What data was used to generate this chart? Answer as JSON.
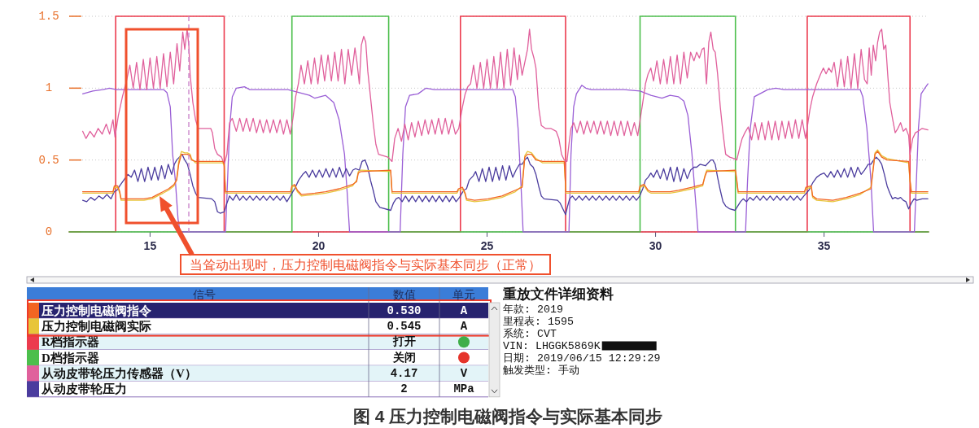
{
  "chart_data": [
    {
      "type": "line",
      "xlim": [
        12.6,
        38.1
      ],
      "xticks": [
        15,
        20,
        25,
        30,
        35
      ],
      "ylim": [
        0,
        1.5
      ],
      "yticks": [
        0,
        0.5,
        1,
        1.5
      ],
      "grid": "y",
      "legend": "bottom",
      "legend_title": "信号",
      "ref_lines": [
        {
          "axis": "x",
          "value": 16.15,
          "color": "#c77dc7",
          "line_style": "dashed"
        }
      ],
      "annotations": [
        "当耸动出现时，压力控制电磁阀指令与实际基本同步（正常）",
        "图 4 压力控制电磁阀指令与实际基本同步"
      ],
      "series": [
        {
          "name": "压力控制电磁阀指令",
          "color": "#f26522",
          "x": [
            13.0,
            13.9,
            13.94,
            14.04,
            14.1,
            14.14,
            14.58,
            14.82,
            15.06,
            15.22,
            15.39,
            15.55,
            15.71,
            15.79,
            15.85,
            15.93,
            16.03,
            16.11,
            16.19,
            16.23,
            16.35,
            17.16,
            17.2,
            17.24,
            19.17,
            19.21,
            19.29,
            19.37,
            19.41,
            19.49,
            19.89,
            20.21,
            20.61,
            21.01,
            21.13,
            21.18,
            21.26,
            22.14,
            22.18,
            24.11,
            24.15,
            24.27,
            24.35,
            24.39,
            24.63,
            25.03,
            25.44,
            25.84,
            26.04,
            26.12,
            26.2,
            26.32,
            26.45,
            26.65,
            27.29,
            27.34,
            29.5,
            29.54,
            29.66,
            29.78,
            29.86,
            30.43,
            30.68,
            31.08,
            31.4,
            31.46,
            31.52,
            32.37,
            32.41,
            32.45,
            34.42,
            34.46,
            34.62,
            34.66,
            34.78,
            35.26,
            35.66,
            36.07,
            36.39,
            36.51,
            36.59,
            36.71,
            36.87,
            37.51,
            37.55,
            37.59,
            38.08
          ],
          "values": [
            0.28,
            0.28,
            0.32,
            0.32,
            0.28,
            0.23,
            0.23,
            0.23,
            0.24,
            0.26,
            0.28,
            0.3,
            0.33,
            0.36,
            0.47,
            0.54,
            0.54,
            0.54,
            0.53,
            0.5,
            0.49,
            0.49,
            0.47,
            0.28,
            0.28,
            0.32,
            0.33,
            0.29,
            0.28,
            0.26,
            0.27,
            0.28,
            0.3,
            0.33,
            0.35,
            0.41,
            0.42,
            0.43,
            0.28,
            0.28,
            0.3,
            0.31,
            0.27,
            0.23,
            0.22,
            0.23,
            0.25,
            0.29,
            0.31,
            0.52,
            0.54,
            0.54,
            0.5,
            0.49,
            0.49,
            0.28,
            0.28,
            0.32,
            0.33,
            0.29,
            0.28,
            0.28,
            0.29,
            0.31,
            0.33,
            0.38,
            0.42,
            0.43,
            0.36,
            0.28,
            0.28,
            0.31,
            0.32,
            0.25,
            0.23,
            0.22,
            0.24,
            0.27,
            0.3,
            0.54,
            0.56,
            0.52,
            0.5,
            0.49,
            0.36,
            0.28,
            0.28
          ]
        },
        {
          "name": "压力控制电磁阀实际",
          "color": "#e8c53a",
          "x": [
            13.0,
            13.9,
            13.94,
            14.04,
            14.1,
            14.14,
            14.58,
            14.82,
            15.06,
            15.22,
            15.39,
            15.55,
            15.71,
            15.79,
            15.85,
            15.93,
            16.03,
            16.11,
            16.19,
            16.23,
            16.35,
            17.16,
            17.2,
            17.24,
            19.17,
            19.21,
            19.29,
            19.37,
            19.41,
            19.49,
            19.89,
            20.21,
            20.61,
            21.01,
            21.13,
            21.18,
            21.26,
            22.14,
            22.18,
            24.11,
            24.15,
            24.27,
            24.35,
            24.39,
            24.63,
            25.03,
            25.44,
            25.84,
            26.04,
            26.12,
            26.2,
            26.32,
            26.45,
            26.65,
            27.29,
            27.34,
            29.5,
            29.54,
            29.66,
            29.78,
            29.86,
            30.43,
            30.68,
            31.08,
            31.4,
            31.46,
            31.52,
            32.37,
            32.41,
            32.45,
            34.42,
            34.46,
            34.62,
            34.66,
            34.78,
            35.26,
            35.66,
            36.07,
            36.39,
            36.51,
            36.59,
            36.71,
            36.87,
            37.51,
            37.55,
            37.59,
            38.08
          ],
          "values": [
            0.27,
            0.27,
            0.31,
            0.31,
            0.27,
            0.22,
            0.22,
            0.22,
            0.23,
            0.25,
            0.27,
            0.29,
            0.32,
            0.37,
            0.49,
            0.56,
            0.55,
            0.55,
            0.54,
            0.51,
            0.48,
            0.48,
            0.46,
            0.27,
            0.27,
            0.31,
            0.32,
            0.28,
            0.27,
            0.25,
            0.26,
            0.27,
            0.29,
            0.32,
            0.36,
            0.42,
            0.43,
            0.42,
            0.27,
            0.27,
            0.29,
            0.3,
            0.26,
            0.22,
            0.21,
            0.22,
            0.24,
            0.28,
            0.32,
            0.53,
            0.56,
            0.55,
            0.51,
            0.48,
            0.48,
            0.27,
            0.27,
            0.31,
            0.32,
            0.28,
            0.27,
            0.27,
            0.28,
            0.3,
            0.32,
            0.39,
            0.43,
            0.42,
            0.35,
            0.27,
            0.27,
            0.3,
            0.31,
            0.24,
            0.22,
            0.21,
            0.23,
            0.26,
            0.31,
            0.55,
            0.57,
            0.53,
            0.51,
            0.48,
            0.35,
            0.27,
            0.27
          ]
        },
        {
          "name": "R档指示器",
          "type": "step",
          "color": "#ec3b4e",
          "x": [
            12.6,
            13.98,
            17.2,
            24.21,
            27.33,
            34.5,
            37.55,
            38.1
          ],
          "values": [
            0,
            1.5,
            0,
            1.5,
            0,
            1.5,
            0,
            0
          ]
        },
        {
          "name": "D档指示器",
          "type": "step",
          "color": "#4cbf4c",
          "x": [
            12.6,
            19.21,
            22.08,
            29.54,
            32.37,
            38.1
          ],
          "values": [
            0,
            1.5,
            0,
            1.5,
            0,
            0
          ]
        },
        {
          "name": "从动皮带轮压力传感器（V）",
          "color": "#e0609c",
          "x": [
            13.0,
            13.1,
            13.22,
            13.34,
            13.46,
            13.58,
            13.7,
            13.8,
            13.9,
            13.96,
            14.06,
            14.18,
            14.3,
            14.4,
            14.5,
            14.6,
            14.7,
            14.8,
            14.9,
            15.0,
            15.1,
            15.2,
            15.3,
            15.4,
            15.5,
            15.6,
            15.7,
            15.8,
            15.88,
            15.97,
            16.03,
            16.1,
            16.15,
            16.19,
            16.27,
            16.35,
            16.43,
            16.8,
            16.85,
            16.92,
            17.0,
            17.12,
            17.2,
            17.28,
            17.36,
            17.44,
            17.56,
            17.66,
            17.76,
            17.86,
            17.96,
            18.06,
            18.16,
            18.26,
            18.36,
            18.46,
            18.56,
            18.66,
            18.76,
            18.86,
            18.96,
            19.06,
            19.16,
            19.24,
            19.32,
            19.4,
            19.48,
            19.58,
            19.68,
            19.78,
            19.88,
            19.98,
            20.08,
            20.18,
            20.28,
            20.38,
            20.48,
            20.58,
            20.68,
            20.78,
            20.88,
            20.98,
            21.08,
            21.14,
            21.21,
            21.27,
            21.34,
            21.4,
            21.46,
            21.54,
            21.62,
            21.7,
            21.78,
            22.06,
            22.18,
            22.26,
            22.36,
            22.46,
            22.56,
            22.66,
            22.76,
            22.86,
            22.96,
            23.06,
            23.16,
            23.26,
            23.36,
            23.46,
            23.56,
            23.66,
            23.76,
            23.86,
            23.96,
            24.06,
            24.16,
            24.27,
            24.35,
            24.43,
            24.51,
            24.6,
            24.7,
            24.8,
            24.9,
            25.0,
            25.1,
            25.2,
            25.3,
            25.4,
            25.5,
            25.6,
            25.7,
            25.8,
            25.9,
            25.96,
            26.04,
            26.12,
            26.2,
            26.26,
            26.32,
            26.39,
            26.45,
            26.53,
            26.61,
            26.73,
            26.89,
            27.05,
            27.13,
            27.21,
            27.29,
            27.37,
            27.43,
            27.49,
            27.57,
            27.67,
            27.77,
            27.87,
            27.97,
            28.07,
            28.17,
            28.27,
            28.37,
            28.47,
            28.57,
            28.67,
            28.77,
            28.87,
            28.97,
            29.07,
            29.17,
            29.27,
            29.37,
            29.47,
            29.62,
            29.7,
            29.78,
            29.86,
            29.94,
            30.04,
            30.14,
            30.24,
            30.34,
            30.44,
            30.54,
            30.64,
            30.74,
            30.84,
            30.94,
            31.04,
            31.14,
            31.22,
            31.3,
            31.38,
            31.44,
            31.51,
            31.58,
            31.64,
            31.71,
            31.77,
            31.84,
            31.92,
            32.0,
            32.08,
            32.2,
            32.33,
            32.41,
            32.49,
            32.57,
            32.65,
            32.75,
            32.85,
            32.95,
            33.05,
            33.15,
            33.25,
            33.35,
            33.45,
            33.55,
            33.65,
            33.75,
            33.85,
            33.95,
            34.05,
            34.15,
            34.25,
            34.35,
            34.45,
            34.58,
            34.66,
            34.78,
            34.9,
            34.98,
            35.06,
            35.14,
            35.22,
            35.3,
            35.4,
            35.5,
            35.6,
            35.7,
            35.8,
            35.9,
            36.0,
            36.1,
            36.2,
            36.28,
            36.34,
            36.4,
            36.46,
            36.53,
            36.59,
            36.65,
            36.71,
            36.77,
            36.83,
            36.89,
            36.95,
            37.03,
            37.11,
            37.19,
            37.27,
            37.35,
            37.43,
            37.51,
            37.55,
            37.63,
            37.71,
            37.79,
            37.91,
            38.08
          ],
          "values": [
            0.7,
            0.65,
            0.7,
            0.66,
            0.72,
            0.68,
            0.75,
            0.68,
            0.78,
            0.66,
            0.81,
            0.94,
            1.05,
            1.16,
            1.0,
            1.18,
            0.99,
            1.2,
            0.99,
            1.21,
            1.0,
            1.22,
            1.0,
            1.24,
            1.01,
            1.25,
            1.03,
            1.31,
            1.12,
            1.39,
            1.27,
            1.41,
            1.3,
            1.09,
            0.9,
            0.78,
            0.72,
            0.72,
            0.69,
            0.58,
            0.54,
            0.52,
            0.47,
            0.54,
            0.76,
            0.79,
            0.7,
            0.79,
            0.7,
            0.79,
            0.7,
            0.79,
            0.69,
            0.78,
            0.69,
            0.78,
            0.69,
            0.78,
            0.69,
            0.78,
            0.68,
            0.78,
            0.68,
            0.79,
            0.94,
            1.03,
            1.16,
            1.03,
            1.19,
            1.03,
            1.21,
            1.03,
            1.23,
            1.05,
            1.23,
            1.05,
            1.25,
            1.05,
            1.27,
            1.03,
            1.27,
            1.09,
            1.28,
            1.18,
            1.03,
            1.3,
            1.36,
            1.32,
            1.12,
            0.94,
            0.76,
            0.61,
            0.54,
            0.52,
            0.49,
            0.65,
            0.72,
            0.63,
            0.75,
            0.64,
            0.76,
            0.66,
            0.77,
            0.67,
            0.78,
            0.68,
            0.78,
            0.68,
            0.79,
            0.68,
            0.79,
            0.68,
            0.78,
            0.68,
            0.72,
            0.87,
            0.96,
            1.01,
            1.03,
            1.16,
            1.0,
            1.18,
            1.0,
            1.2,
            1.0,
            1.22,
            1.0,
            1.25,
            1.0,
            1.27,
            1.02,
            1.28,
            1.06,
            1.23,
            1.09,
            1.18,
            1.27,
            1.41,
            1.27,
            1.21,
            1.14,
            0.87,
            0.74,
            0.72,
            0.72,
            0.7,
            0.65,
            0.54,
            0.5,
            0.49,
            0.61,
            0.72,
            0.76,
            0.69,
            0.77,
            0.68,
            0.77,
            0.69,
            0.77,
            0.68,
            0.77,
            0.68,
            0.77,
            0.67,
            0.77,
            0.67,
            0.77,
            0.67,
            0.77,
            0.67,
            0.76,
            0.67,
            0.9,
            1.03,
            1.1,
            1.14,
            1.05,
            1.19,
            1.03,
            1.2,
            1.03,
            1.22,
            1.03,
            1.23,
            1.03,
            1.25,
            1.07,
            1.25,
            1.19,
            1.25,
            1.21,
            1.27,
            1.28,
            1.03,
            1.32,
            1.39,
            1.27,
            1.25,
            1.1,
            0.87,
            0.69,
            0.54,
            0.52,
            0.51,
            0.5,
            0.58,
            0.65,
            0.69,
            0.73,
            0.64,
            0.76,
            0.64,
            0.76,
            0.64,
            0.77,
            0.64,
            0.77,
            0.64,
            0.77,
            0.65,
            0.77,
            0.65,
            0.78,
            0.65,
            0.78,
            0.65,
            0.85,
            0.94,
            1.03,
            1.1,
            1.14,
            1.1,
            1.14,
            1.11,
            1.18,
            1.01,
            1.2,
            1.01,
            1.22,
            1.0,
            1.24,
            1.0,
            1.27,
            1.06,
            1.03,
            1.28,
            1.09,
            1.3,
            1.19,
            1.32,
            1.39,
            1.41,
            1.27,
            1.3,
            1.09,
            0.9,
            0.79,
            0.69,
            0.72,
            0.76,
            0.7,
            0.72,
            0.67,
            0.54,
            0.65,
            0.69,
            0.7,
            0.72,
            0.71
          ]
        },
        {
          "name": "从动皮带轮压力",
          "color": "#4b3c9e",
          "x": [
            13.0,
            13.12,
            13.24,
            13.36,
            13.48,
            13.6,
            13.72,
            13.84,
            13.94,
            14.02,
            14.1,
            14.22,
            14.34,
            14.44,
            14.54,
            14.64,
            14.74,
            14.84,
            14.94,
            15.04,
            15.14,
            15.24,
            15.34,
            15.44,
            15.54,
            15.64,
            15.72,
            15.79,
            15.87,
            15.95,
            16.03,
            16.11,
            16.19,
            16.27,
            16.35,
            16.43,
            16.83,
            16.92,
            17.0,
            17.08,
            17.2,
            17.28,
            17.36,
            17.46,
            17.56,
            17.66,
            17.76,
            17.86,
            17.96,
            18.06,
            18.16,
            18.26,
            18.36,
            18.46,
            18.56,
            18.66,
            18.76,
            18.86,
            18.96,
            19.06,
            19.16,
            19.29,
            19.41,
            19.53,
            19.62,
            19.72,
            19.82,
            19.92,
            20.02,
            20.12,
            20.22,
            20.32,
            20.42,
            20.52,
            20.62,
            20.72,
            20.82,
            20.92,
            21.02,
            21.1,
            21.21,
            21.29,
            21.38,
            21.46,
            21.54,
            21.62,
            21.7,
            21.82,
            22.14,
            22.22,
            22.3,
            22.38,
            22.48,
            22.58,
            22.68,
            22.78,
            22.88,
            22.98,
            23.08,
            23.18,
            23.28,
            23.38,
            23.48,
            23.58,
            23.68,
            23.78,
            23.88,
            23.98,
            24.08,
            24.18,
            24.31,
            24.39,
            24.47,
            24.59,
            24.66,
            24.76,
            24.86,
            24.96,
            25.06,
            25.16,
            25.26,
            25.36,
            25.46,
            25.56,
            25.66,
            25.76,
            25.86,
            25.96,
            26.04,
            26.12,
            26.2,
            26.28,
            26.37,
            26.45,
            26.53,
            26.61,
            26.69,
            27.09,
            27.17,
            27.25,
            27.33,
            27.39,
            27.45,
            27.53,
            27.63,
            27.73,
            27.83,
            27.93,
            28.03,
            28.13,
            28.23,
            28.33,
            28.43,
            28.53,
            28.63,
            28.73,
            28.83,
            28.93,
            29.03,
            29.13,
            29.23,
            29.33,
            29.43,
            29.53,
            29.62,
            29.7,
            29.78,
            29.86,
            29.94,
            30.04,
            30.14,
            30.24,
            30.34,
            30.44,
            30.54,
            30.64,
            30.74,
            30.84,
            30.94,
            31.04,
            31.14,
            31.22,
            31.32,
            31.48,
            31.64,
            31.7,
            31.77,
            31.84,
            31.92,
            32.0,
            32.08,
            32.2,
            32.36,
            32.44,
            32.52,
            32.6,
            32.7,
            32.8,
            32.9,
            33.0,
            33.1,
            33.2,
            33.3,
            33.4,
            33.5,
            33.6,
            33.7,
            33.8,
            33.9,
            34.0,
            34.1,
            34.2,
            34.3,
            34.4,
            34.55,
            34.66,
            34.78,
            34.9,
            35.0,
            35.1,
            35.2,
            35.3,
            35.4,
            35.5,
            35.6,
            35.7,
            35.8,
            35.9,
            36.0,
            36.1,
            36.2,
            36.31,
            36.39,
            36.47,
            36.55,
            36.63,
            36.71,
            36.79,
            36.87,
            36.95,
            37.03,
            37.11,
            37.19,
            37.27,
            37.35,
            37.43,
            37.51,
            37.59,
            37.67,
            37.75,
            37.91,
            38.08
          ],
          "values": [
            0.22,
            0.21,
            0.24,
            0.22,
            0.25,
            0.23,
            0.26,
            0.23,
            0.28,
            0.29,
            0.32,
            0.36,
            0.4,
            0.38,
            0.43,
            0.35,
            0.44,
            0.35,
            0.45,
            0.36,
            0.45,
            0.36,
            0.46,
            0.37,
            0.47,
            0.4,
            0.47,
            0.5,
            0.52,
            0.54,
            0.5,
            0.47,
            0.4,
            0.32,
            0.27,
            0.24,
            0.23,
            0.21,
            0.14,
            0.13,
            0.14,
            0.2,
            0.25,
            0.22,
            0.26,
            0.22,
            0.25,
            0.22,
            0.25,
            0.22,
            0.25,
            0.22,
            0.25,
            0.22,
            0.25,
            0.22,
            0.25,
            0.22,
            0.25,
            0.21,
            0.25,
            0.3,
            0.36,
            0.4,
            0.42,
            0.38,
            0.43,
            0.38,
            0.43,
            0.38,
            0.44,
            0.38,
            0.44,
            0.38,
            0.45,
            0.38,
            0.44,
            0.39,
            0.43,
            0.44,
            0.43,
            0.49,
            0.5,
            0.45,
            0.36,
            0.29,
            0.21,
            0.17,
            0.15,
            0.2,
            0.23,
            0.24,
            0.21,
            0.25,
            0.21,
            0.25,
            0.21,
            0.25,
            0.21,
            0.25,
            0.21,
            0.25,
            0.21,
            0.25,
            0.21,
            0.25,
            0.21,
            0.25,
            0.21,
            0.24,
            0.29,
            0.3,
            0.36,
            0.39,
            0.42,
            0.35,
            0.44,
            0.35,
            0.45,
            0.35,
            0.45,
            0.36,
            0.46,
            0.36,
            0.46,
            0.38,
            0.43,
            0.47,
            0.47,
            0.5,
            0.52,
            0.47,
            0.45,
            0.4,
            0.32,
            0.25,
            0.23,
            0.22,
            0.2,
            0.16,
            0.12,
            0.18,
            0.23,
            0.25,
            0.22,
            0.25,
            0.22,
            0.25,
            0.22,
            0.25,
            0.22,
            0.25,
            0.22,
            0.25,
            0.22,
            0.25,
            0.22,
            0.25,
            0.22,
            0.25,
            0.22,
            0.25,
            0.22,
            0.25,
            0.3,
            0.36,
            0.38,
            0.41,
            0.38,
            0.43,
            0.37,
            0.44,
            0.36,
            0.45,
            0.35,
            0.45,
            0.35,
            0.44,
            0.37,
            0.43,
            0.45,
            0.45,
            0.47,
            0.46,
            0.5,
            0.5,
            0.47,
            0.38,
            0.29,
            0.21,
            0.18,
            0.16,
            0.15,
            0.18,
            0.21,
            0.23,
            0.21,
            0.24,
            0.22,
            0.25,
            0.22,
            0.25,
            0.22,
            0.25,
            0.22,
            0.25,
            0.22,
            0.25,
            0.22,
            0.25,
            0.22,
            0.25,
            0.22,
            0.25,
            0.29,
            0.34,
            0.38,
            0.4,
            0.41,
            0.38,
            0.42,
            0.38,
            0.43,
            0.38,
            0.44,
            0.38,
            0.45,
            0.38,
            0.45,
            0.4,
            0.43,
            0.47,
            0.47,
            0.5,
            0.52,
            0.5,
            0.47,
            0.4,
            0.32,
            0.27,
            0.23,
            0.24,
            0.23,
            0.24,
            0.22,
            0.21,
            0.16,
            0.2,
            0.23,
            0.22,
            0.23,
            0.23
          ]
        },
        {
          "color": "#9a5fd6",
          "x": [
            13.0,
            13.3,
            13.6,
            13.8,
            14.0,
            15.4,
            15.5,
            15.6,
            15.67,
            15.75,
            15.83,
            15.89,
            17.24,
            17.3,
            17.36,
            17.44,
            17.56,
            17.8,
            17.96,
            18.6,
            19.09,
            19.41,
            19.73,
            19.89,
            20.21,
            20.45,
            20.61,
            20.77,
            20.85,
            20.92,
            22.42,
            22.5,
            22.58,
            22.7,
            22.95,
            23.19,
            23.43,
            25.76,
            25.84,
            25.92,
            26.0,
            26.07,
            27.43,
            27.49,
            27.57,
            27.65,
            27.81,
            27.93,
            28.09,
            29.06,
            29.54,
            29.86,
            30.19,
            30.43,
            30.68,
            30.84,
            30.96,
            31.08,
            31.2,
            31.26,
            32.67,
            32.73,
            32.81,
            32.93,
            33.09,
            33.33,
            33.57,
            33.81,
            36.07,
            36.15,
            36.27,
            36.39,
            36.47,
            37.68,
            37.74,
            37.8,
            37.88,
            37.99,
            38.08
          ],
          "values": [
            0.96,
            0.98,
            0.99,
            1.0,
            0.99,
            0.99,
            0.97,
            0.87,
            0.54,
            0.36,
            0.09,
            0,
            0,
            0.36,
            0.72,
            0.94,
            1.0,
            1.01,
            0.99,
            0.99,
            0.99,
            0.97,
            0.95,
            0.93,
            0.95,
            0.9,
            0.78,
            0.54,
            0.27,
            0,
            0,
            0.54,
            0.87,
            0.95,
            0.96,
            1.0,
            0.99,
            0.99,
            0.94,
            0.72,
            0.36,
            0,
            0,
            0.54,
            0.87,
            0.96,
            1.02,
            1.0,
            0.99,
            0.99,
            0.98,
            0.95,
            0.93,
            0.95,
            0.94,
            0.91,
            0.81,
            0.54,
            0.18,
            0,
            0,
            0.36,
            0.72,
            0.94,
            0.96,
            0.99,
            1.0,
            0.99,
            0.99,
            0.94,
            0.72,
            0.36,
            0,
            0,
            0.36,
            0.72,
            0.96,
            1.0,
            1.03
          ]
        }
      ]
    },
    {
      "type": "other",
      "annotations": [
        "数值",
        "单元",
        "0.530",
        "A",
        "0.545",
        "A",
        "打开",
        "关闭",
        "4.17",
        "V",
        "2",
        "MPa"
      ]
    },
    {
      "type": "other",
      "title": "重放文件详细资料",
      "annotations": [
        "年款: 2019",
        "里程表:  1595",
        "系统: CVT",
        "VIN: LHGGK5869K",
        "日期: 2019/06/15 12:29:29",
        "触发类型: 手动"
      ]
    }
  ]
}
